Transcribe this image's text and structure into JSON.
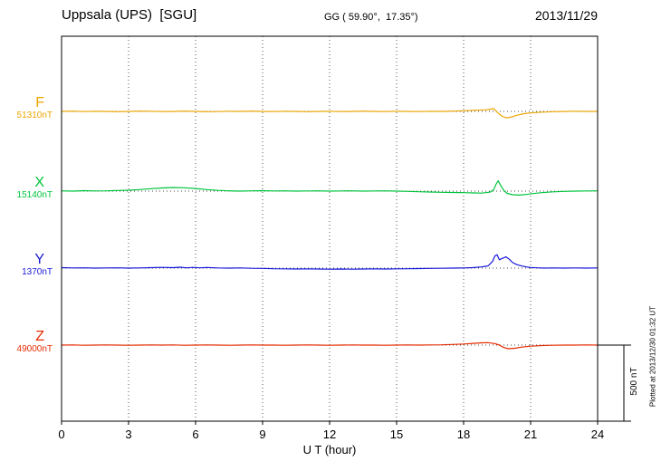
{
  "header": {
    "station_title": "Uppsala (UPS)  [SGU]",
    "coordinates": "GG ( 59.90°,  17.35°)",
    "date": "2013/11/29"
  },
  "chart_data": {
    "type": "line",
    "title": "Uppsala (UPS)  [SGU]",
    "xlabel": "U T (hour)",
    "xlim": [
      0,
      24
    ],
    "x_ticks": [
      0,
      3,
      6,
      9,
      12,
      15,
      18,
      21,
      24
    ],
    "grid": "dotted vertical gridlines every 3 hours; dotted horizontal baseline per trace",
    "legend_position": "left baseline labels",
    "scale_bar": {
      "label": "500 nT",
      "nT": 500
    },
    "plotted_note": "Plotted at 2013/12/30 01:32 UT",
    "series": [
      {
        "name": "F",
        "baseline_label": "51310nT",
        "baseline_nT": 51310,
        "unit": "nT",
        "color": "#eba400",
        "points": [
          [
            0,
            0
          ],
          [
            0.5,
            2
          ],
          [
            1,
            -1
          ],
          [
            1.5,
            1
          ],
          [
            2,
            0
          ],
          [
            2.5,
            -2
          ],
          [
            3,
            0
          ],
          [
            3.5,
            2
          ],
          [
            4,
            1
          ],
          [
            4.5,
            -1
          ],
          [
            5,
            0
          ],
          [
            5.5,
            2
          ],
          [
            6,
            0
          ],
          [
            6.5,
            -2
          ],
          [
            7,
            -1
          ],
          [
            7.5,
            1
          ],
          [
            8,
            0
          ],
          [
            8.5,
            2
          ],
          [
            9,
            0
          ],
          [
            9.5,
            -1
          ],
          [
            10,
            1
          ],
          [
            10.5,
            0
          ],
          [
            11,
            -2
          ],
          [
            11.5,
            0
          ],
          [
            12,
            1
          ],
          [
            12.5,
            -1
          ],
          [
            13,
            0
          ],
          [
            13.5,
            2
          ],
          [
            14,
            0
          ],
          [
            14.5,
            -1
          ],
          [
            15,
            1
          ],
          [
            15.5,
            0
          ],
          [
            16,
            -1
          ],
          [
            16.5,
            1
          ],
          [
            17,
            0
          ],
          [
            17.5,
            2
          ],
          [
            18,
            4
          ],
          [
            18.5,
            8
          ],
          [
            19,
            10
          ],
          [
            19.2,
            14
          ],
          [
            19.35,
            18
          ],
          [
            19.5,
            -5
          ],
          [
            19.7,
            -30
          ],
          [
            19.9,
            -42
          ],
          [
            20.1,
            -38
          ],
          [
            20.4,
            -25
          ],
          [
            20.7,
            -15
          ],
          [
            21,
            -10
          ],
          [
            21.5,
            -5
          ],
          [
            22,
            -2
          ],
          [
            22.5,
            0
          ],
          [
            23,
            1
          ],
          [
            23.5,
            0
          ],
          [
            24,
            0
          ]
        ]
      },
      {
        "name": "X",
        "baseline_label": "15140nT",
        "baseline_nT": 15140,
        "unit": "nT",
        "color": "#00c43c",
        "points": [
          [
            0,
            2
          ],
          [
            0.5,
            0
          ],
          [
            1,
            3
          ],
          [
            1.5,
            1
          ],
          [
            2,
            2
          ],
          [
            2.5,
            4
          ],
          [
            3,
            6
          ],
          [
            3.5,
            10
          ],
          [
            4,
            16
          ],
          [
            4.5,
            21
          ],
          [
            5,
            24
          ],
          [
            5.5,
            22
          ],
          [
            6,
            17
          ],
          [
            6.5,
            10
          ],
          [
            7,
            5
          ],
          [
            7.5,
            2
          ],
          [
            8,
            0
          ],
          [
            8.5,
            2
          ],
          [
            9,
            3
          ],
          [
            9.5,
            1
          ],
          [
            10,
            2
          ],
          [
            10.5,
            0
          ],
          [
            11,
            1
          ],
          [
            11.5,
            2
          ],
          [
            12,
            0
          ],
          [
            12.5,
            1
          ],
          [
            13,
            2
          ],
          [
            13.5,
            0
          ],
          [
            14,
            1
          ],
          [
            14.5,
            2
          ],
          [
            15,
            0
          ],
          [
            15.5,
            -2
          ],
          [
            16,
            -4
          ],
          [
            16.5,
            -6
          ],
          [
            17,
            -8
          ],
          [
            17.5,
            -9
          ],
          [
            18,
            -10
          ],
          [
            18.5,
            -12
          ],
          [
            18.8,
            -13
          ],
          [
            19,
            -10
          ],
          [
            19.2,
            -6
          ],
          [
            19.35,
            10
          ],
          [
            19.45,
            45
          ],
          [
            19.55,
            68
          ],
          [
            19.65,
            40
          ],
          [
            19.8,
            5
          ],
          [
            19.95,
            -15
          ],
          [
            20.2,
            -24
          ],
          [
            20.5,
            -26
          ],
          [
            20.8,
            -22
          ],
          [
            21.1,
            -16
          ],
          [
            21.5,
            -10
          ],
          [
            22,
            -5
          ],
          [
            22.5,
            -2
          ],
          [
            23,
            0
          ],
          [
            23.5,
            1
          ],
          [
            24,
            2
          ]
        ]
      },
      {
        "name": "Y",
        "baseline_label": "1370nT",
        "baseline_nT": 1370,
        "unit": "nT",
        "color": "#1717dc",
        "points": [
          [
            0,
            3
          ],
          [
            0.5,
            1
          ],
          [
            1,
            2
          ],
          [
            1.5,
            0
          ],
          [
            2,
            1
          ],
          [
            2.5,
            2
          ],
          [
            3,
            0
          ],
          [
            3.5,
            1
          ],
          [
            4,
            3
          ],
          [
            4.5,
            5
          ],
          [
            5,
            3
          ],
          [
            5.3,
            6
          ],
          [
            5.6,
            2
          ],
          [
            5.9,
            5
          ],
          [
            6.2,
            2
          ],
          [
            6.5,
            4
          ],
          [
            7,
            1
          ],
          [
            7.5,
            0
          ],
          [
            8,
            1
          ],
          [
            8.5,
            -1
          ],
          [
            9,
            -2
          ],
          [
            9.5,
            -4
          ],
          [
            10,
            -5
          ],
          [
            10.5,
            -6
          ],
          [
            11,
            -5
          ],
          [
            11.5,
            -6
          ],
          [
            12,
            -7
          ],
          [
            12.5,
            -6
          ],
          [
            13,
            -7
          ],
          [
            13.5,
            -6
          ],
          [
            14,
            -5
          ],
          [
            14.5,
            -6
          ],
          [
            15,
            -5
          ],
          [
            15.5,
            -4
          ],
          [
            16,
            -3
          ],
          [
            16.5,
            -2
          ],
          [
            17,
            -1
          ],
          [
            17.5,
            0
          ],
          [
            18,
            1
          ],
          [
            18.4,
            3
          ],
          [
            18.8,
            8
          ],
          [
            19.1,
            15
          ],
          [
            19.3,
            45
          ],
          [
            19.4,
            80
          ],
          [
            19.5,
            88
          ],
          [
            19.6,
            55
          ],
          [
            19.75,
            65
          ],
          [
            19.9,
            74
          ],
          [
            20.05,
            58
          ],
          [
            20.2,
            36
          ],
          [
            20.4,
            22
          ],
          [
            20.6,
            14
          ],
          [
            20.8,
            8
          ],
          [
            21,
            4
          ],
          [
            21.3,
            2
          ],
          [
            21.6,
            0
          ],
          [
            22,
            1
          ],
          [
            22.5,
            0
          ],
          [
            23,
            1
          ],
          [
            23.5,
            0
          ],
          [
            24,
            1
          ]
        ]
      },
      {
        "name": "Z",
        "baseline_label": "49000nT",
        "baseline_nT": 49000,
        "unit": "nT",
        "color": "#e42b00",
        "points": [
          [
            0,
            0
          ],
          [
            0.5,
            1
          ],
          [
            1,
            -1
          ],
          [
            1.5,
            0
          ],
          [
            2,
            1
          ],
          [
            2.5,
            0
          ],
          [
            3,
            -1
          ],
          [
            3.5,
            0
          ],
          [
            4,
            1
          ],
          [
            4.5,
            0
          ],
          [
            5,
            1
          ],
          [
            5.5,
            -1
          ],
          [
            6,
            0
          ],
          [
            6.5,
            1
          ],
          [
            7,
            0
          ],
          [
            7.5,
            -1
          ],
          [
            8,
            0
          ],
          [
            8.5,
            1
          ],
          [
            9,
            0
          ],
          [
            9.5,
            0
          ],
          [
            10,
            -1
          ],
          [
            10.5,
            0
          ],
          [
            11,
            1
          ],
          [
            11.5,
            0
          ],
          [
            12,
            -1
          ],
          [
            12.5,
            0
          ],
          [
            13,
            1
          ],
          [
            13.5,
            0
          ],
          [
            14,
            0
          ],
          [
            14.5,
            -1
          ],
          [
            15,
            0
          ],
          [
            15.5,
            1
          ],
          [
            16,
            0
          ],
          [
            16.5,
            1
          ],
          [
            17,
            2
          ],
          [
            17.5,
            4
          ],
          [
            18,
            7
          ],
          [
            18.5,
            12
          ],
          [
            18.8,
            15
          ],
          [
            19.1,
            16
          ],
          [
            19.4,
            10
          ],
          [
            19.6,
            0
          ],
          [
            19.8,
            -16
          ],
          [
            20,
            -24
          ],
          [
            20.3,
            -21
          ],
          [
            20.6,
            -13
          ],
          [
            21,
            -7
          ],
          [
            21.5,
            -3
          ],
          [
            22,
            -1
          ],
          [
            22.5,
            0
          ],
          [
            23,
            0
          ],
          [
            23.5,
            1
          ],
          [
            24,
            0
          ]
        ]
      }
    ]
  }
}
